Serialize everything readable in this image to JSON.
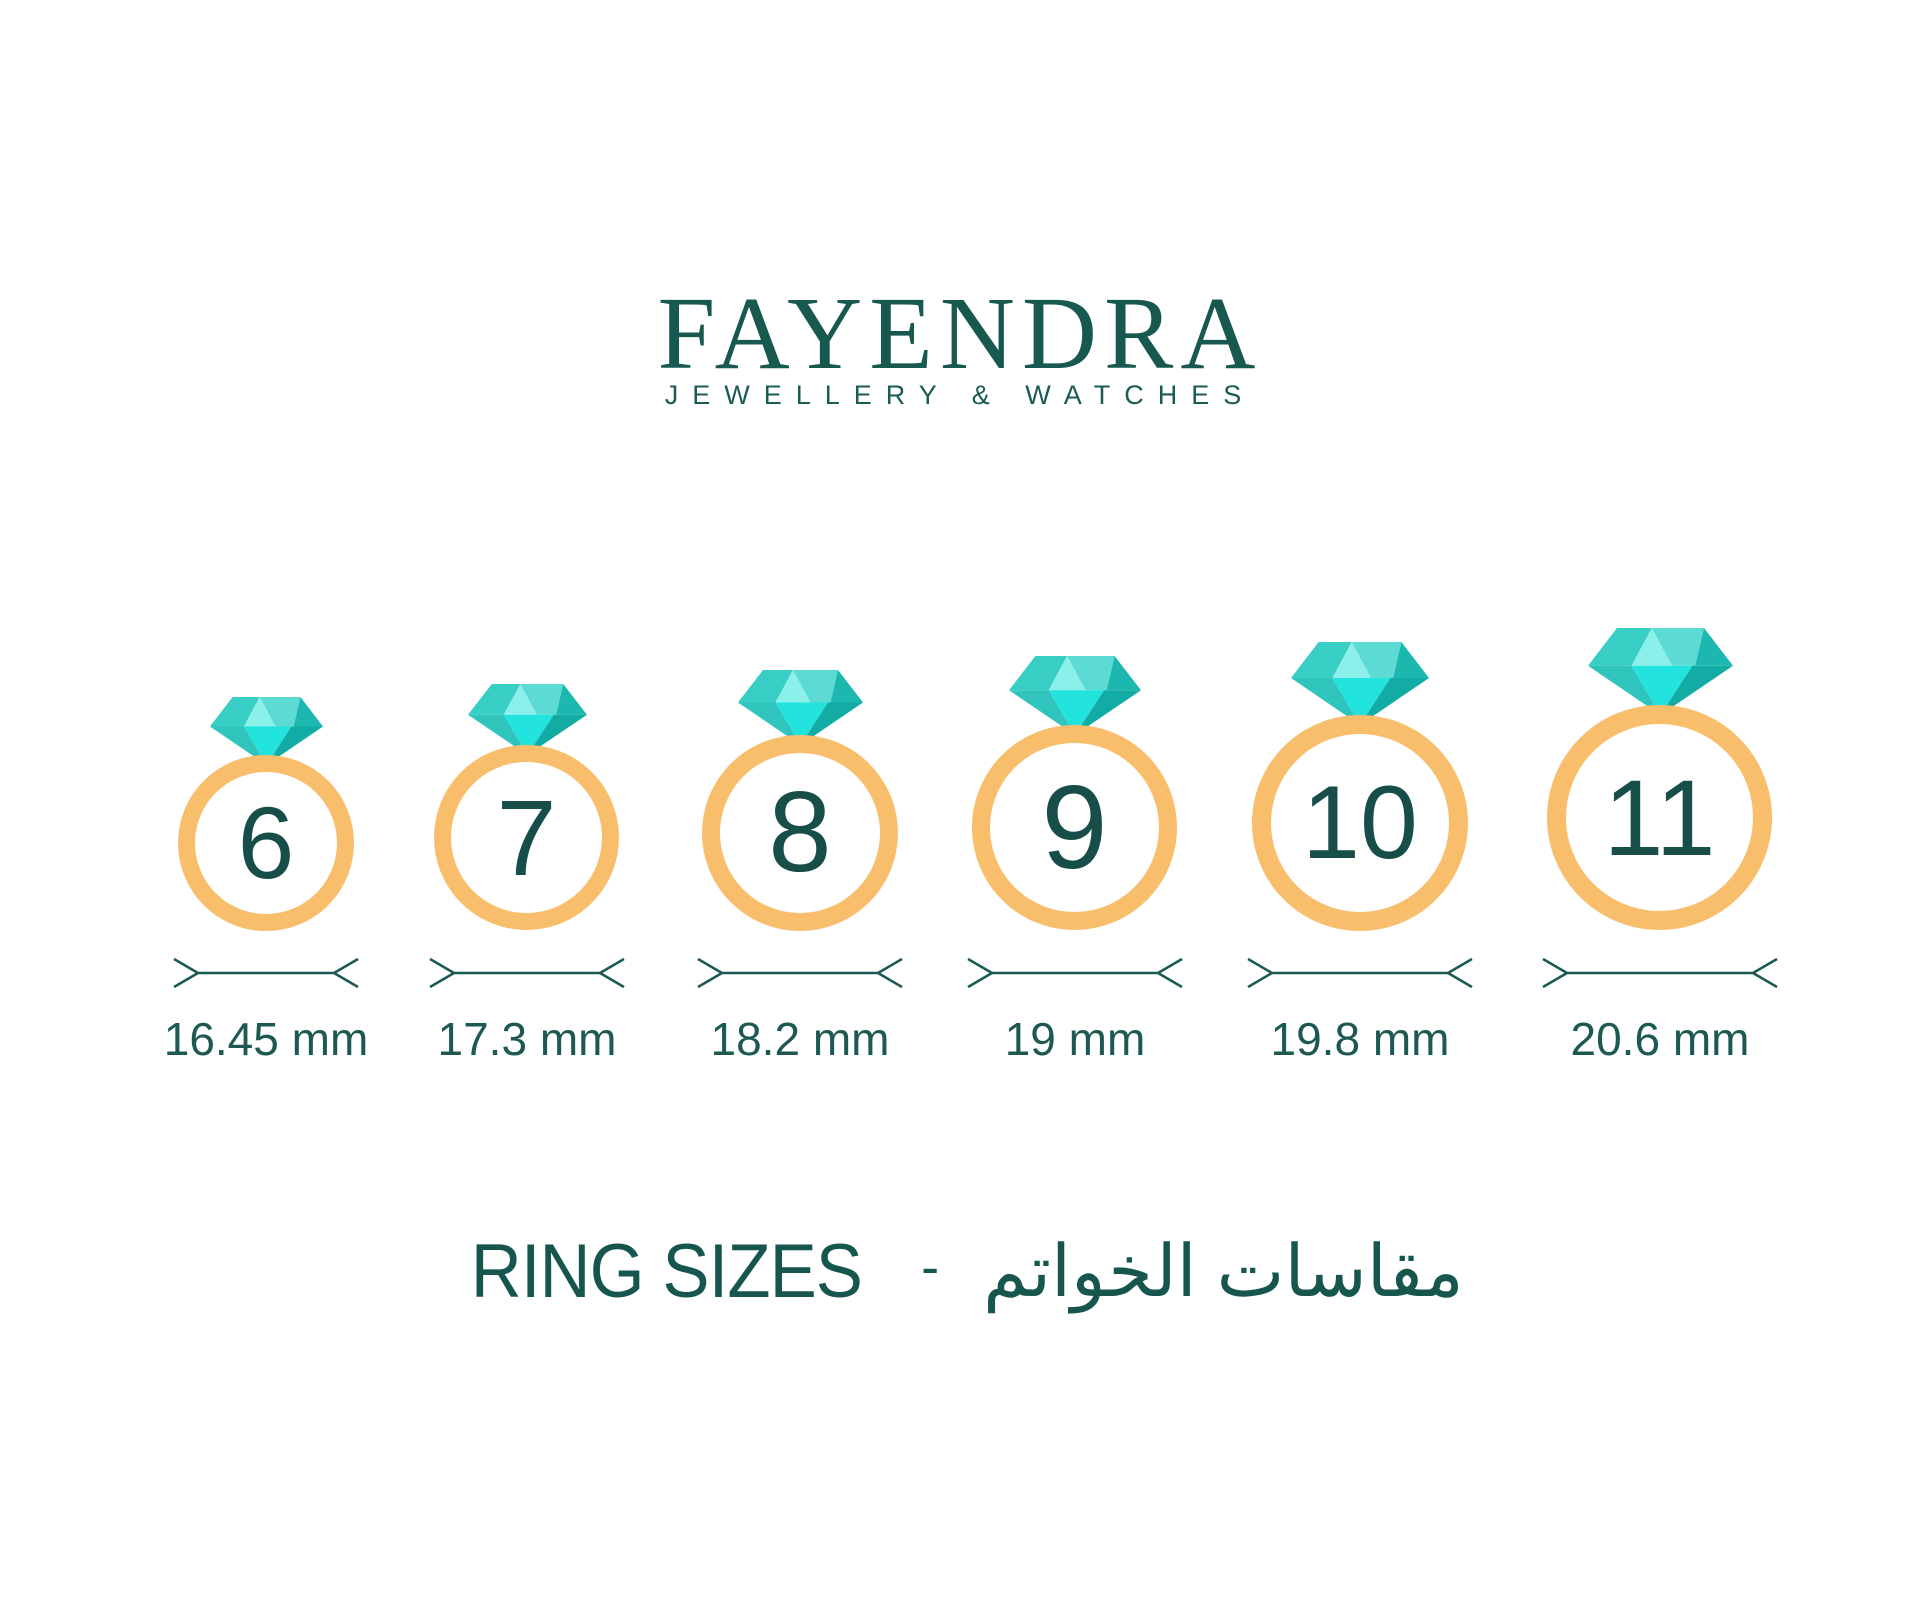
{
  "brand": {
    "name": "FAYENDRA",
    "tagline": "JEWELLERY & WATCHES"
  },
  "title": {
    "en": "RING SIZES",
    "separator": "-",
    "ar": "مقاسات الخواتم"
  },
  "chart_data": {
    "type": "table",
    "title": "RING SIZES - مقاسات الخواتم",
    "columns": [
      "ring_size",
      "inner_diameter"
    ],
    "rings": [
      {
        "size": "6",
        "diameter": "16.45 mm"
      },
      {
        "size": "7",
        "diameter": "17.3 mm"
      },
      {
        "size": "8",
        "diameter": "18.2 mm"
      },
      {
        "size": "9",
        "diameter": "19 mm"
      },
      {
        "size": "10",
        "diameter": "19.8 mm"
      },
      {
        "size": "11",
        "diameter": "20.6 mm"
      }
    ]
  },
  "colors": {
    "text_teal": "#1D5952",
    "number_teal": "#174E4A",
    "logo_teal": "#17584F",
    "band_gold": "#F8BE6C",
    "dim_line": "#1B5A54",
    "gem_crown_left": "#38CDC5",
    "gem_crown_center": "#8BF0EA",
    "gem_crown_right": "#5CDBD4",
    "gem_crown_edge": "#1CB7AE",
    "gem_pav_left": "#2FC5BD",
    "gem_pav_center": "#22E3DE",
    "gem_pav_right": "#13ACA4"
  }
}
